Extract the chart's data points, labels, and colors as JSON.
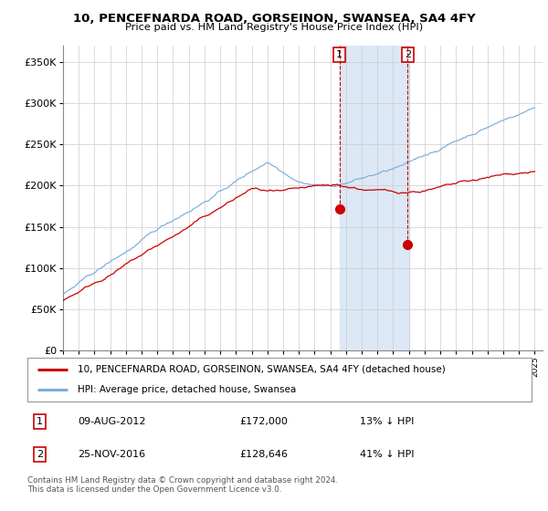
{
  "title": "10, PENCEFNARDA ROAD, GORSEINON, SWANSEA, SA4 4FY",
  "subtitle": "Price paid vs. HM Land Registry's House Price Index (HPI)",
  "legend_line1": "10, PENCEFNARDA ROAD, GORSEINON, SWANSEA, SA4 4FY (detached house)",
  "legend_line2": "HPI: Average price, detached house, Swansea",
  "annotation1_date": "09-AUG-2012",
  "annotation1_price": "£172,000",
  "annotation1_hpi": "13% ↓ HPI",
  "annotation2_date": "25-NOV-2016",
  "annotation2_price": "£128,646",
  "annotation2_hpi": "41% ↓ HPI",
  "footer": "Contains HM Land Registry data © Crown copyright and database right 2024.\nThis data is licensed under the Open Government Licence v3.0.",
  "hpi_color": "#7aaddc",
  "price_color": "#cc0000",
  "shade_color": "#dce8f5",
  "ylim": [
    0,
    370000
  ],
  "yticks": [
    0,
    50000,
    100000,
    150000,
    200000,
    250000,
    300000,
    350000
  ],
  "background_color": "#ffffff",
  "grid_color": "#cccccc",
  "marker1_x": 2012.583,
  "marker1_y": 172000,
  "marker2_x": 2016.917,
  "marker2_y": 128646,
  "shade_x1": 2012.583,
  "shade_x2": 2017.0,
  "xlim_left": 1995.0,
  "xlim_right": 2025.5
}
